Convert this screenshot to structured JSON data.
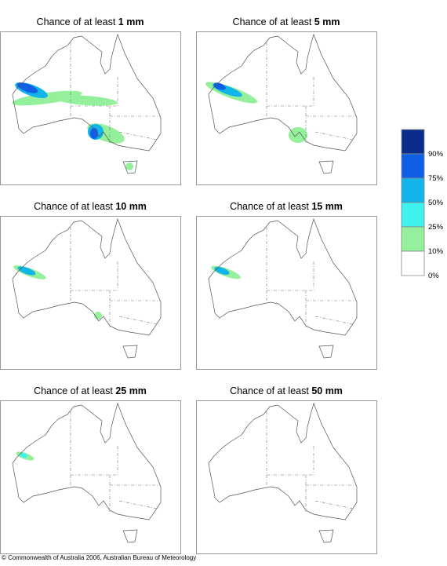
{
  "panels": [
    {
      "title": "Chance of at least",
      "amount": "1 mm"
    },
    {
      "title": "Chance of at least",
      "amount": "5 mm"
    },
    {
      "title": "Chance of at least",
      "amount": "10 mm"
    },
    {
      "title": "Chance of at least",
      "amount": "15 mm"
    },
    {
      "title": "Chance of at least",
      "amount": "25 mm"
    },
    {
      "title": "Chance of at least",
      "amount": "50 mm"
    }
  ],
  "legend": {
    "items": [
      {
        "label": "90%",
        "color": "#0a2c8a"
      },
      {
        "label": "75%",
        "color": "#0f5fe6"
      },
      {
        "label": "50%",
        "color": "#12b4ea"
      },
      {
        "label": "25%",
        "color": "#3ef2ee"
      },
      {
        "label": "10%",
        "color": "#94f09a"
      },
      {
        "label": "0%",
        "color": "#ffffff"
      }
    ]
  },
  "footer": "© Commonwealth of Australia 2006, Australian Bureau of Meteorology"
}
